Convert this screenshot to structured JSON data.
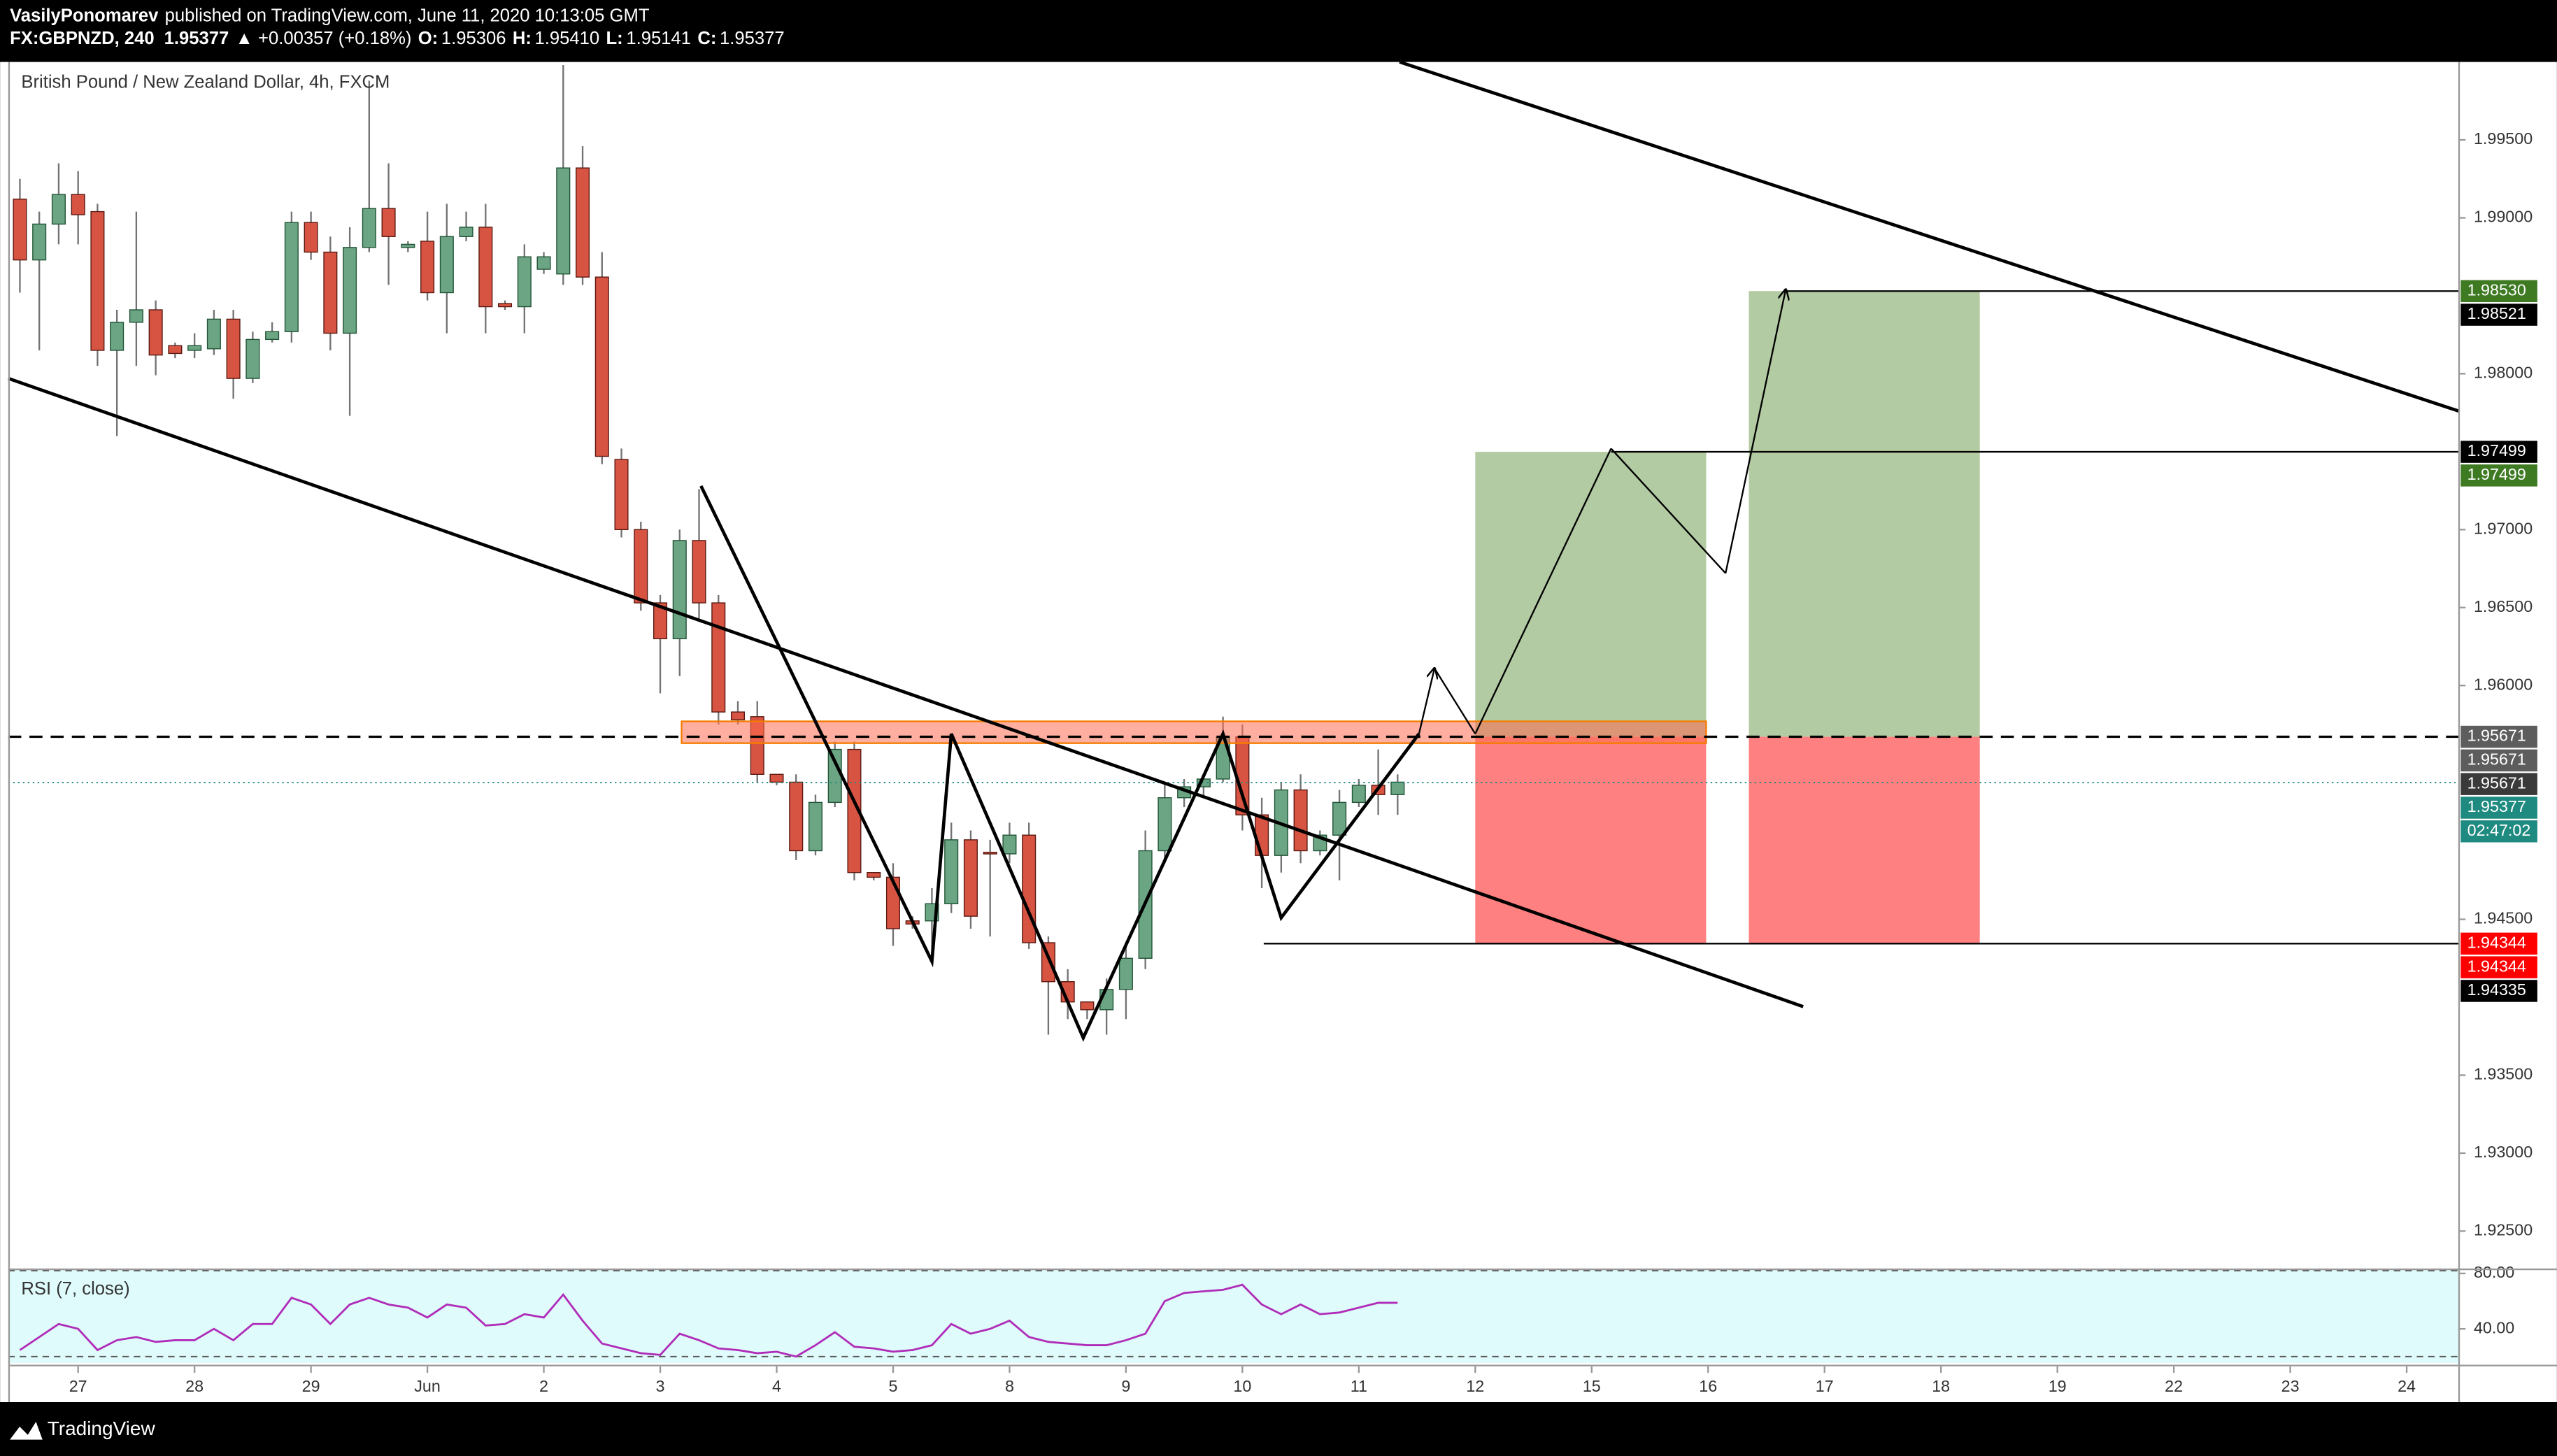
{
  "header": {
    "author": "VasilyPonomarev",
    "published": "published on TradingView.com, June 11, 2020 10:13:05 GMT",
    "symbol": "FX:GBPNZD, 240",
    "last": "1.95377",
    "change": "▲ +0.00357 (+0.18%)",
    "ohlc": [
      {
        "label": "O:",
        "value": "1.95306"
      },
      {
        "label": "H:",
        "value": "1.95410"
      },
      {
        "label": "L:",
        "value": "1.95141"
      },
      {
        "label": "C:",
        "value": "1.95377"
      }
    ]
  },
  "footer": {
    "brand": "TradingView"
  },
  "chart_data": {
    "type": "candlestick",
    "title": "British Pound / New Zealand Dollar, 4h, FXCM",
    "up_color": "#6ba583",
    "down_color": "#d75442",
    "up_border": "#225437",
    "down_border": "#5b1a13",
    "wick_color": "#737375",
    "x": [
      -3,
      -2,
      -1,
      0,
      1,
      2,
      3,
      4,
      5,
      6,
      7,
      8,
      9,
      10,
      11,
      12,
      13,
      14,
      15,
      16,
      17,
      18,
      19,
      20,
      21,
      22,
      23,
      24,
      25,
      26,
      27,
      28,
      29,
      30,
      31,
      32,
      33,
      34,
      35,
      36,
      37,
      38,
      39,
      40,
      41,
      42,
      43,
      44,
      45,
      46,
      47,
      48,
      49,
      50,
      51,
      52,
      53,
      54,
      55,
      56,
      57,
      58,
      59,
      60,
      61,
      62,
      63,
      64,
      65,
      66,
      67,
      68
    ],
    "candles": [
      [
        1.9912,
        1.9925,
        1.9852,
        1.9873
      ],
      [
        1.9873,
        1.9904,
        1.9815,
        1.9896
      ],
      [
        1.9896,
        1.9935,
        1.9883,
        1.9915
      ],
      [
        1.9915,
        1.993,
        1.9883,
        1.9902
      ],
      [
        1.9904,
        1.9909,
        1.9805,
        1.9815
      ],
      [
        1.9815,
        1.9841,
        1.976,
        1.9833
      ],
      [
        1.9833,
        1.9904,
        1.9805,
        1.9841
      ],
      [
        1.9841,
        1.9847,
        1.9799,
        1.9812
      ],
      [
        1.9818,
        1.982,
        1.981,
        1.9813
      ],
      [
        1.9815,
        1.9826,
        1.981,
        1.9818
      ],
      [
        1.9816,
        1.9841,
        1.9812,
        1.9835
      ],
      [
        1.9835,
        1.9841,
        1.9784,
        1.9797
      ],
      [
        1.9797,
        1.9827,
        1.9794,
        1.9822
      ],
      [
        1.9822,
        1.9833,
        1.982,
        1.9827
      ],
      [
        1.9827,
        1.9904,
        1.982,
        1.9897
      ],
      [
        1.9897,
        1.9904,
        1.9873,
        1.9878
      ],
      [
        1.9878,
        1.9888,
        1.9815,
        1.9826
      ],
      [
        1.9826,
        1.9894,
        1.9773,
        1.9881
      ],
      [
        1.9881,
        1.9988,
        1.9878,
        1.9906
      ],
      [
        1.9906,
        1.9935,
        1.9857,
        1.9888
      ],
      [
        1.9881,
        1.9885,
        1.9878,
        1.9883
      ],
      [
        1.9885,
        1.9904,
        1.9847,
        1.9852
      ],
      [
        1.9852,
        1.9909,
        1.9826,
        1.9888
      ],
      [
        1.9888,
        1.9904,
        1.9885,
        1.9894
      ],
      [
        1.9894,
        1.9909,
        1.9826,
        1.9843
      ],
      [
        1.9845,
        1.9847,
        1.9841,
        1.9843
      ],
      [
        1.9843,
        1.9883,
        1.9826,
        1.9875
      ],
      [
        1.9867,
        1.9878,
        1.9864,
        1.9875
      ],
      [
        1.9864,
        1.9998,
        1.9857,
        1.9932
      ],
      [
        1.9932,
        1.9946,
        1.9857,
        1.9862
      ],
      [
        1.9862,
        1.9878,
        1.9742,
        1.9747
      ],
      [
        1.9745,
        1.9752,
        1.9695,
        1.97
      ],
      [
        1.97,
        1.9705,
        1.9648,
        1.9653
      ],
      [
        1.9653,
        1.9658,
        1.9595,
        1.963
      ],
      [
        1.963,
        1.97,
        1.9606,
        1.9693
      ],
      [
        1.9693,
        1.9726,
        1.9643,
        1.9653
      ],
      [
        1.9653,
        1.9658,
        1.9575,
        1.9583
      ],
      [
        1.9583,
        1.959,
        1.9575,
        1.9578
      ],
      [
        1.958,
        1.959,
        1.9538,
        1.9543
      ],
      [
        1.9543,
        1.9543,
        1.9536,
        1.9538
      ],
      [
        1.9538,
        1.9543,
        1.9488,
        1.9494
      ],
      [
        1.9494,
        1.953,
        1.9491,
        1.9525
      ],
      [
        1.9525,
        1.9564,
        1.9522,
        1.9559
      ],
      [
        1.9559,
        1.9564,
        1.9475,
        1.948
      ],
      [
        1.948,
        1.948,
        1.9475,
        1.9477
      ],
      [
        1.9477,
        1.9486,
        1.9433,
        1.9444
      ],
      [
        1.9449,
        1.9452,
        1.9444,
        1.9447
      ],
      [
        1.9449,
        1.947,
        1.9423,
        1.946
      ],
      [
        1.946,
        1.9512,
        1.9454,
        1.9501
      ],
      [
        1.9501,
        1.9507,
        1.9444,
        1.9452
      ],
      [
        1.9493,
        1.9501,
        1.9439,
        1.9492
      ],
      [
        1.9492,
        1.9512,
        1.9486,
        1.9504
      ],
      [
        1.9504,
        1.9512,
        1.9431,
        1.9435
      ],
      [
        1.9435,
        1.9439,
        1.9376,
        1.941
      ],
      [
        1.941,
        1.9418,
        1.9386,
        1.9397
      ],
      [
        1.9397,
        1.9397,
        1.9386,
        1.9392
      ],
      [
        1.9392,
        1.9412,
        1.9376,
        1.9405
      ],
      [
        1.9405,
        1.9433,
        1.9386,
        1.9425
      ],
      [
        1.9425,
        1.9507,
        1.9418,
        1.9494
      ],
      [
        1.9494,
        1.9538,
        1.9486,
        1.9528
      ],
      [
        1.9528,
        1.954,
        1.9522,
        1.9535
      ],
      [
        1.9535,
        1.9543,
        1.9528,
        1.954
      ],
      [
        1.954,
        1.958,
        1.9538,
        1.9567
      ],
      [
        1.9567,
        1.9575,
        1.9507,
        1.9517
      ],
      [
        1.9517,
        1.9528,
        1.947,
        1.9491
      ],
      [
        1.9491,
        1.9538,
        1.948,
        1.9533
      ],
      [
        1.9533,
        1.9543,
        1.9486,
        1.9494
      ],
      [
        1.9494,
        1.9507,
        1.9491,
        1.9504
      ],
      [
        1.9504,
        1.9533,
        1.9475,
        1.9525
      ],
      [
        1.9525,
        1.954,
        1.9522,
        1.9536
      ],
      [
        1.9536,
        1.9559,
        1.9517,
        1.953
      ],
      [
        1.953,
        1.9543,
        1.9517,
        1.9538
      ]
    ],
    "xlim": [
      -3.6,
      122.7
    ],
    "ylim": [
      1.9226,
      2.0
    ],
    "xticks": [
      {
        "value": 0,
        "label": "27"
      },
      {
        "value": 6,
        "label": "28"
      },
      {
        "value": 12,
        "label": "29"
      },
      {
        "value": 18,
        "label": "Jun"
      },
      {
        "value": 24,
        "label": "2"
      },
      {
        "value": 30,
        "label": "3"
      },
      {
        "value": 36,
        "label": "4"
      },
      {
        "value": 42,
        "label": "5"
      },
      {
        "value": 48,
        "label": "8"
      },
      {
        "value": 54,
        "label": "9"
      },
      {
        "value": 60,
        "label": "10"
      },
      {
        "value": 66,
        "label": "11"
      },
      {
        "value": 72,
        "label": "12"
      },
      {
        "value": 78,
        "label": "15"
      },
      {
        "value": 84,
        "label": "16"
      },
      {
        "value": 90,
        "label": "17"
      },
      {
        "value": 96,
        "label": "18"
      },
      {
        "value": 102,
        "label": "19"
      },
      {
        "value": 108,
        "label": "22"
      },
      {
        "value": 114,
        "label": "23"
      },
      {
        "value": 120,
        "label": "24"
      }
    ],
    "yticks": [
      {
        "value": 1.995,
        "label": "1.99500"
      },
      {
        "value": 1.99,
        "label": "1.99000"
      },
      {
        "value": 1.98,
        "label": "1.98000"
      },
      {
        "value": 1.97,
        "label": "1.97000"
      },
      {
        "value": 1.965,
        "label": "1.96500"
      },
      {
        "value": 1.96,
        "label": "1.96000"
      },
      {
        "value": 1.945,
        "label": "1.94500"
      },
      {
        "value": 1.935,
        "label": "1.93500"
      },
      {
        "value": 1.93,
        "label": "1.93000"
      },
      {
        "value": 1.925,
        "label": "1.92500"
      }
    ],
    "grid": false,
    "last_price": 1.95377,
    "last_color": "#1e8a80",
    "countdown": "02:47:02",
    "price_labels": [
      {
        "value": 1.9853,
        "label": "1.98530",
        "color": "#3d7a22"
      },
      {
        "value": 1.98521,
        "label": "1.98521",
        "color": "#000000"
      },
      {
        "value": 1.97499,
        "label": "1.97499",
        "color": "#000000"
      },
      {
        "value": 1.97499,
        "label": "1.97499",
        "color": "#3d7a22"
      },
      {
        "value": 1.95671,
        "label": "1.95671",
        "color": "#5d5d5d"
      },
      {
        "value": 1.95671,
        "label": "1.95671",
        "color": "#5d5d5d"
      },
      {
        "value": 1.95671,
        "label": "1.95671",
        "color": "#3a3a3a"
      },
      {
        "value": 1.95377,
        "label": "1.95377",
        "color": "#1e8a80"
      },
      {
        "value": 1.94344,
        "label": "1.94344",
        "color": "#ff0000"
      },
      {
        "value": 1.94344,
        "label": "1.94344",
        "color": "#ff0000"
      },
      {
        "value": 1.94335,
        "label": "1.94335",
        "color": "#000000"
      }
    ],
    "drawings": {
      "trendlines": [
        [
          [
            68.1,
            2.0
          ],
          [
            122.7,
            1.9776
          ]
        ],
        [
          [
            -3.6,
            1.9797
          ],
          [
            88.9,
            1.9394
          ]
        ]
      ],
      "zigzag": [
        [
          32.1,
          1.9728
        ],
        [
          44.0,
          1.9423
        ],
        [
          45.0,
          1.9569
        ],
        [
          51.8,
          1.9374
        ],
        [
          59.0,
          1.9569
        ],
        [
          62.0,
          1.9451
        ],
        [
          69.1,
          1.9569
        ]
      ],
      "projection": [
        [
          69.1,
          1.9569
        ],
        [
          69.9,
          1.9611
        ],
        [
          72.0,
          1.9569
        ],
        [
          79.0,
          1.9752
        ],
        [
          84.9,
          1.9672
        ],
        [
          88.0,
          1.9854
        ]
      ],
      "zone": {
        "x": [
          31.1,
          83.9
        ],
        "y": [
          1.9563,
          1.9577
        ],
        "color": "#ff6b50",
        "border": "#f57c00"
      },
      "positions": [
        {
          "x": [
            72.0,
            83.9
          ],
          "entry": 1.95671,
          "target": 1.97499,
          "stop": 1.94344
        },
        {
          "x": [
            86.1,
            98.0
          ],
          "entry": 1.95671,
          "target": 1.9853,
          "stop": 1.94344
        }
      ],
      "profit_color": "#b3cba3",
      "loss_color": "#ff8080",
      "levels": [
        {
          "price": 1.95671,
          "style": "dashed"
        },
        {
          "price": 1.9853,
          "from": 88.0,
          "style": "solid"
        },
        {
          "price": 1.97499,
          "from": 79.0,
          "style": "solid"
        },
        {
          "price": 1.94344,
          "from": 61.1,
          "style": "solid"
        }
      ]
    },
    "rsi": {
      "title": "RSI (7, close)",
      "color": "#b02cb8",
      "ylim": [
        15.3,
        82.4
      ],
      "yticks": [
        {
          "value": 80,
          "label": "80.00"
        },
        {
          "value": 40,
          "label": "40.00"
        }
      ],
      "bands": [
        82,
        20
      ],
      "values": [
        24.7,
        34.1,
        43.5,
        40,
        24.7,
        31.8,
        34.1,
        30.6,
        31.8,
        31.8,
        40,
        31.8,
        43.5,
        43.5,
        62.4,
        57.6,
        43.5,
        57.6,
        62.4,
        57.6,
        55.3,
        48.2,
        57.6,
        55.3,
        42.4,
        43.5,
        50.6,
        48.2,
        64.7,
        45.9,
        29.4,
        25.9,
        22.4,
        21.2,
        36.5,
        31.8,
        25.9,
        24.7,
        22.4,
        23.5,
        20,
        28.2,
        37.6,
        27.1,
        25.9,
        23.5,
        24.7,
        28.2,
        43.5,
        36.5,
        40,
        45.9,
        34.1,
        30.6,
        29.4,
        28.2,
        28.2,
        31.8,
        36.5,
        60,
        65.9,
        67.1,
        68.2,
        71.8,
        57.6,
        50.6,
        57.6,
        50.6,
        51.8,
        55.3,
        58.8,
        58.8
      ]
    }
  }
}
